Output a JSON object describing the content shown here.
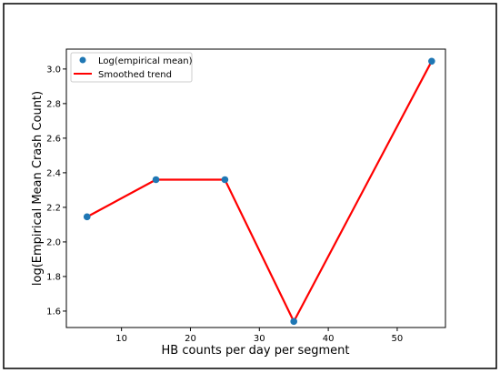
{
  "chart_data": {
    "type": "line",
    "xlabel": "HB counts per day per segment",
    "ylabel": "log(Empirical Mean Crash Count)",
    "xlim": [
      2,
      57
    ],
    "ylim": [
      1.505,
      3.115
    ],
    "x_ticks": [
      10,
      20,
      30,
      40,
      50
    ],
    "y_ticks": [
      1.6,
      1.8,
      2.0,
      2.2,
      2.4,
      2.6,
      2.8,
      3.0
    ],
    "x_tick_labels": [
      "10",
      "20",
      "30",
      "40",
      "50"
    ],
    "y_tick_labels": [
      "1.6",
      "1.8",
      "2.0",
      "2.2",
      "2.4",
      "2.6",
      "2.8",
      "3.0"
    ],
    "grid": false,
    "legend_position": "top-left",
    "series": [
      {
        "name": "Log(empirical mean)",
        "kind": "scatter",
        "color": "#1f77b4",
        "x": [
          5,
          15,
          25,
          35,
          55
        ],
        "y": [
          2.145,
          2.36,
          2.36,
          1.54,
          3.045
        ]
      },
      {
        "name": "Smoothed trend",
        "kind": "line",
        "color": "#ff0000",
        "x": [
          5,
          15,
          25,
          35,
          55
        ],
        "y": [
          2.145,
          2.36,
          2.36,
          1.54,
          3.045
        ]
      }
    ]
  }
}
